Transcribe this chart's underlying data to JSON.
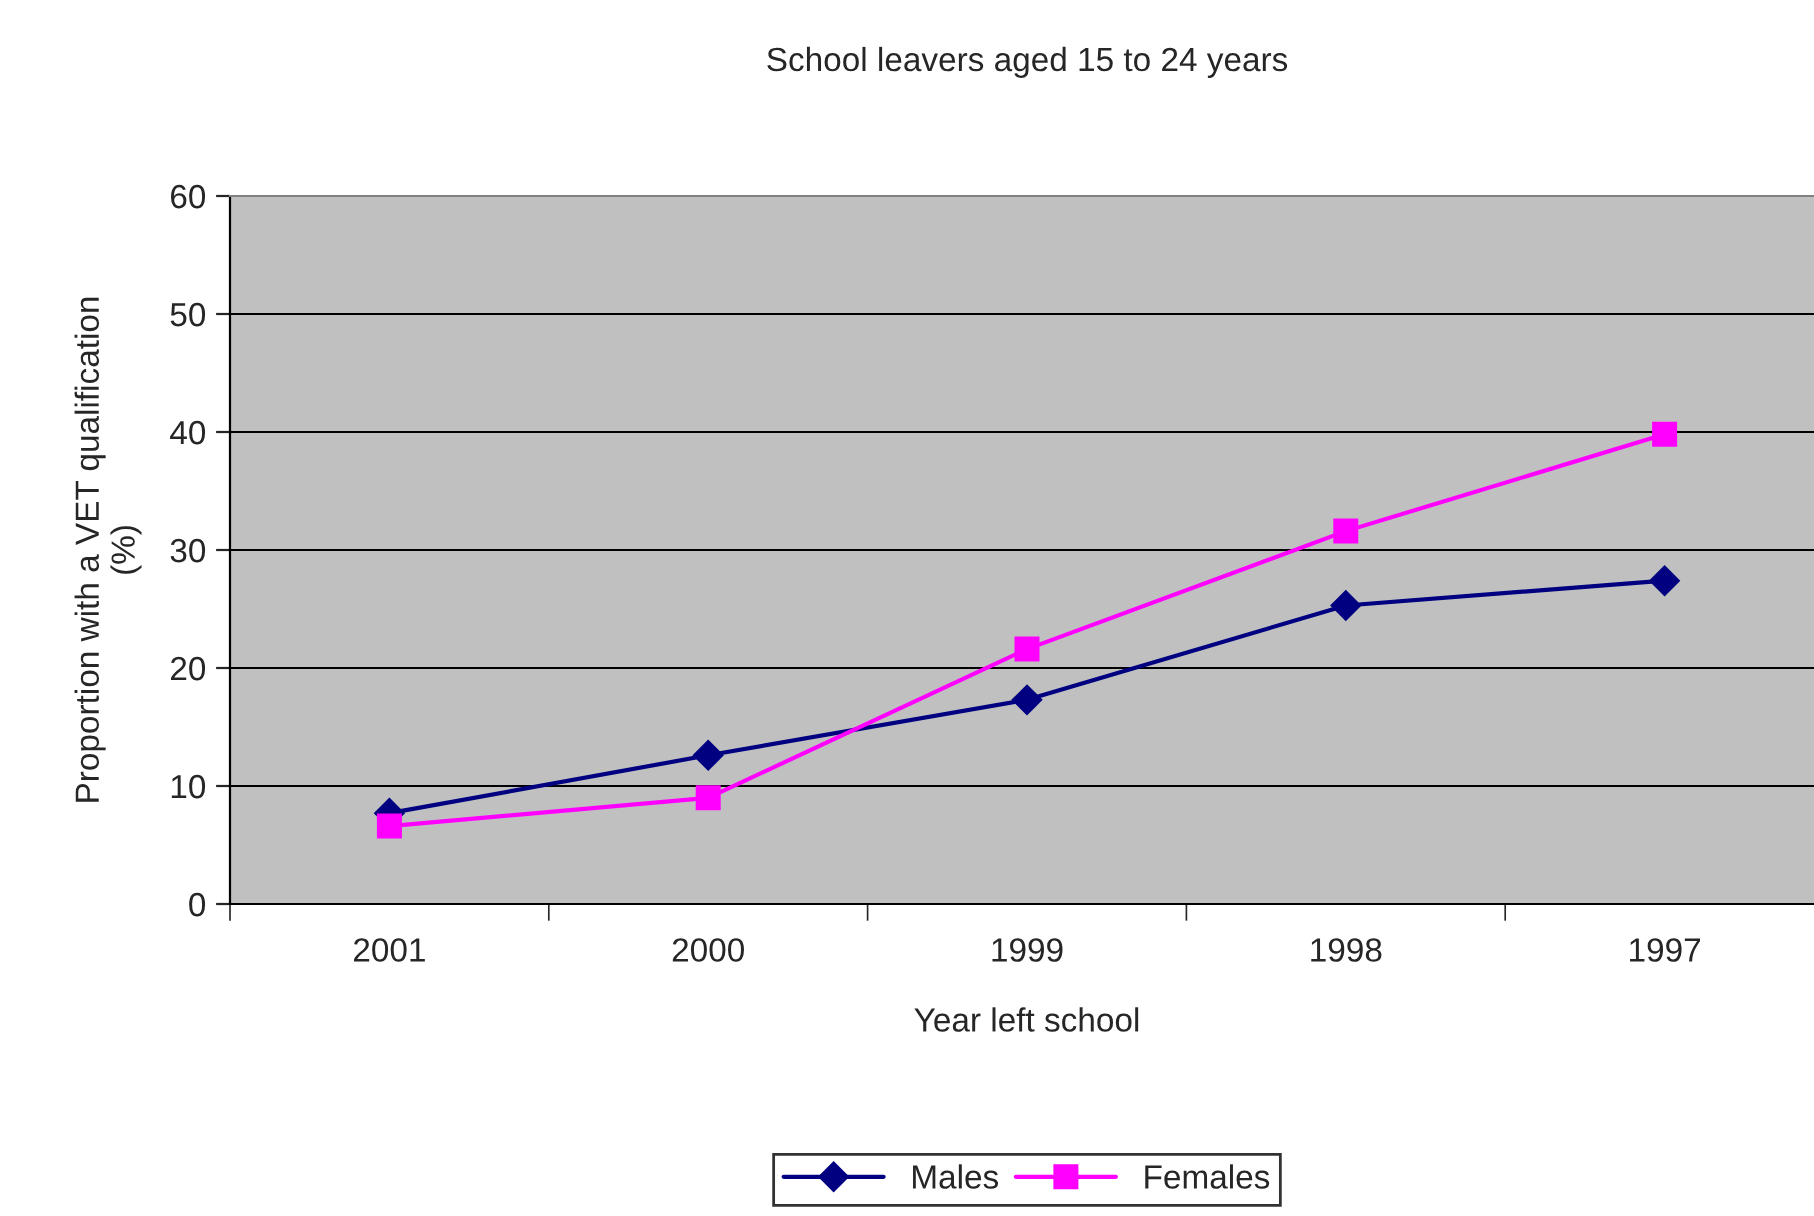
{
  "chart_data": {
    "type": "line",
    "title": "School leavers aged 15 to 24 years",
    "xlabel": "Year left school",
    "ylabel": "Proportion with a VET qualification\n(%)",
    "categories": [
      "2001",
      "2000",
      "1999",
      "1998",
      "1997"
    ],
    "series": [
      {
        "name": "Males",
        "color": "#000080",
        "marker": "diamond",
        "values": [
          7.7,
          12.6,
          17.3,
          25.3,
          27.4
        ]
      },
      {
        "name": "Females",
        "color": "#ff00ff",
        "marker": "square",
        "values": [
          6.6,
          9.0,
          21.6,
          31.6,
          39.8
        ]
      }
    ],
    "ylim": [
      0,
      60
    ],
    "yticks": [
      0,
      10,
      20,
      30,
      40,
      50,
      60
    ],
    "grid": "y",
    "legend": "bottom"
  }
}
